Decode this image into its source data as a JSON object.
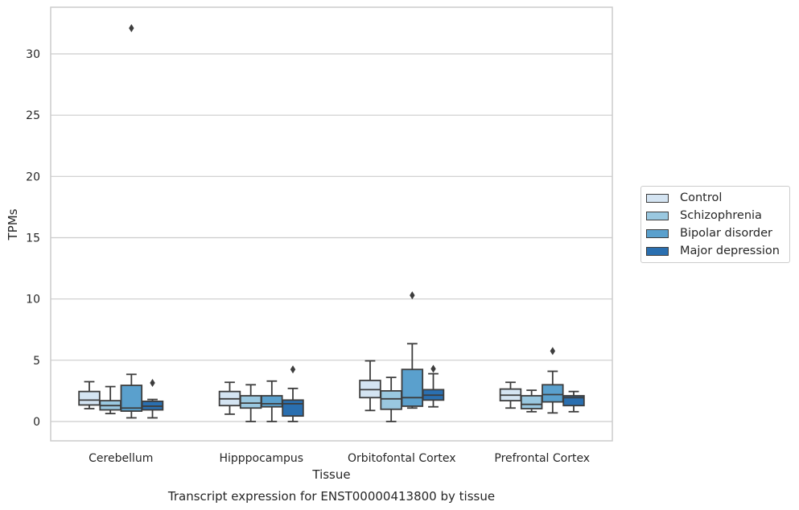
{
  "chart_data": {
    "type": "boxplot",
    "title": "Transcript expression for ENST00000413800 by tissue",
    "xlabel": "Tissue",
    "ylabel": "TPMs",
    "ylim": [
      -1.5,
      33.5
    ],
    "yticks": [
      0,
      5,
      10,
      15,
      20,
      25,
      30
    ],
    "grid": "horizontal",
    "legend_position": "right",
    "categories": [
      "Cerebellum",
      "Hipppocampus",
      "Orbitofontal Cortex",
      "Prefrontal Cortex"
    ],
    "series": [
      {
        "name": "Control",
        "color": "#d4e4f2",
        "boxes": [
          {
            "whisker_low": 1.05,
            "q1": 1.35,
            "median": 1.75,
            "q3": 2.45,
            "whisker_high": 3.25,
            "outliers": []
          },
          {
            "whisker_low": 0.6,
            "q1": 1.3,
            "median": 1.85,
            "q3": 2.45,
            "whisker_high": 3.2,
            "outliers": []
          },
          {
            "whisker_low": 0.9,
            "q1": 1.95,
            "median": 2.6,
            "q3": 3.35,
            "whisker_high": 4.95,
            "outliers": []
          },
          {
            "whisker_low": 1.1,
            "q1": 1.7,
            "median": 2.15,
            "q3": 2.65,
            "whisker_high": 3.2,
            "outliers": []
          }
        ]
      },
      {
        "name": "Schizophrenia",
        "color": "#9ac8e0",
        "boxes": [
          {
            "whisker_low": 0.65,
            "q1": 0.95,
            "median": 1.3,
            "q3": 1.7,
            "whisker_high": 2.85,
            "outliers": []
          },
          {
            "whisker_low": 0.0,
            "q1": 1.1,
            "median": 1.5,
            "q3": 2.1,
            "whisker_high": 3.0,
            "outliers": []
          },
          {
            "whisker_low": 0.0,
            "q1": 1.0,
            "median": 1.85,
            "q3": 2.5,
            "whisker_high": 3.6,
            "outliers": []
          },
          {
            "whisker_low": 0.8,
            "q1": 1.05,
            "median": 1.4,
            "q3": 2.1,
            "whisker_high": 2.55,
            "outliers": []
          }
        ]
      },
      {
        "name": "Bipolar disorder",
        "color": "#5aa0cd",
        "boxes": [
          {
            "whisker_low": 0.3,
            "q1": 0.85,
            "median": 1.1,
            "q3": 2.95,
            "whisker_high": 3.85,
            "outliers": [
              32.1
            ]
          },
          {
            "whisker_low": 0.0,
            "q1": 1.2,
            "median": 1.45,
            "q3": 2.1,
            "whisker_high": 3.3,
            "outliers": []
          },
          {
            "whisker_low": 1.1,
            "q1": 1.25,
            "median": 1.95,
            "q3": 4.25,
            "whisker_high": 6.35,
            "outliers": [
              10.3
            ]
          },
          {
            "whisker_low": 0.7,
            "q1": 1.6,
            "median": 2.2,
            "q3": 3.0,
            "whisker_high": 4.1,
            "outliers": [
              5.75
            ]
          }
        ]
      },
      {
        "name": "Major depression",
        "color": "#2a6fb0",
        "boxes": [
          {
            "whisker_low": 0.3,
            "q1": 0.95,
            "median": 1.25,
            "q3": 1.65,
            "whisker_high": 1.8,
            "outliers": [
              3.15
            ]
          },
          {
            "whisker_low": 0.0,
            "q1": 0.45,
            "median": 1.45,
            "q3": 1.75,
            "whisker_high": 2.7,
            "outliers": [
              4.25
            ]
          },
          {
            "whisker_low": 1.2,
            "q1": 1.75,
            "median": 2.15,
            "q3": 2.6,
            "whisker_high": 3.9,
            "outliers": [
              4.3
            ]
          },
          {
            "whisker_low": 0.8,
            "q1": 1.3,
            "median": 1.95,
            "q3": 2.1,
            "whisker_high": 2.45,
            "outliers": []
          }
        ]
      }
    ]
  }
}
